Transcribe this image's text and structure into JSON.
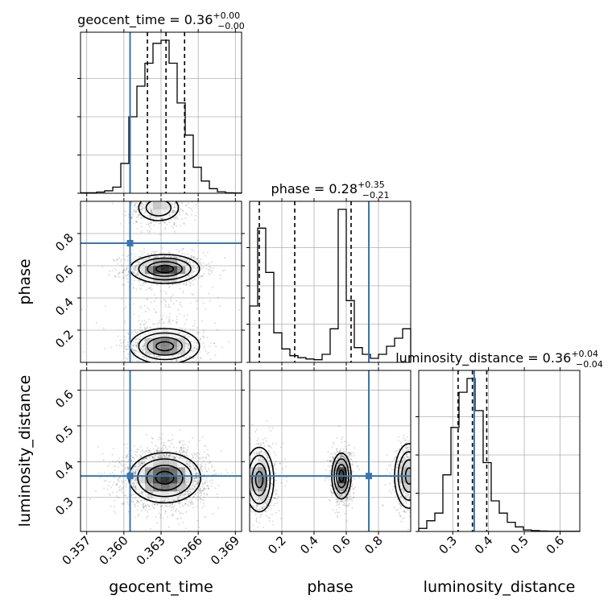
{
  "chart_data": {
    "type": "corner",
    "colors": {
      "truth": "#3a76b0",
      "line": "#000000",
      "grid": "#b0b0b0",
      "points": "#444444"
    },
    "params": [
      {
        "name": "geocent_time",
        "title": "geocent_time = 0.36",
        "title_sup": "+0.00",
        "title_sub": "−0.00",
        "range": [
          0.3565,
          0.3695
        ],
        "ticks": [
          0.357,
          0.36,
          0.363,
          0.366,
          0.369
        ],
        "tick_labels": [
          "0.357",
          "0.360",
          "0.363",
          "0.366",
          "0.369"
        ],
        "truth": 0.3605,
        "quantiles": [
          0.3619,
          0.3634,
          0.3649
        ],
        "hist_edges": [
          0.3565,
          0.35715,
          0.3578,
          0.35845,
          0.3591,
          0.35975,
          0.3604,
          0.36105,
          0.3617,
          0.36235,
          0.363,
          0.36365,
          0.3643,
          0.36495,
          0.3656,
          0.36625,
          0.3669,
          0.36755,
          0.3682,
          0.36885,
          0.3695
        ],
        "hist_counts": [
          0.3,
          0.3,
          0.8,
          1.6,
          4.0,
          19.5,
          50.0,
          70.0,
          85.0,
          98.0,
          100.0,
          85.0,
          59.0,
          38.0,
          17.0,
          8.0,
          3.0,
          1.0,
          0.3,
          0.2
        ]
      },
      {
        "name": "phase",
        "title": "phase = 0.28",
        "title_sup": "+0.35",
        "title_sub": "−0.21",
        "range": [
          0.0,
          1.0
        ],
        "ticks": [
          0.2,
          0.4,
          0.6,
          0.8
        ],
        "tick_labels": [
          "0.2",
          "0.4",
          "0.6",
          "0.8"
        ],
        "truth": 0.74,
        "quantiles": [
          0.06,
          0.28,
          0.63
        ],
        "hist_edges": [
          0.0,
          0.05,
          0.1,
          0.15,
          0.2,
          0.25,
          0.3,
          0.35,
          0.4,
          0.45,
          0.5,
          0.55,
          0.6,
          0.65,
          0.7,
          0.75,
          0.8,
          0.85,
          0.9,
          0.95,
          1.0
        ],
        "hist_counts": [
          42.0,
          100.0,
          67.0,
          22.0,
          10.0,
          5.0,
          3.5,
          2.5,
          2.0,
          6.0,
          25.0,
          114.0,
          46.0,
          11.0,
          6.0,
          3.0,
          6.0,
          12.0,
          18.0,
          25.0
        ]
      },
      {
        "name": "luminosity_distance",
        "title": "luminosity_distance = 0.36",
        "title_sup": "+0.04",
        "title_sub": "−0.04",
        "range": [
          0.205,
          0.655
        ],
        "ticks": [
          0.3,
          0.4,
          0.5,
          0.6
        ],
        "tick_labels": [
          "0.3",
          "0.4",
          "0.5",
          "0.6"
        ],
        "truth": 0.36,
        "quantiles": [
          0.315,
          0.355,
          0.395
        ],
        "hist_edges": [
          0.205,
          0.2275,
          0.25,
          0.2725,
          0.295,
          0.3175,
          0.34,
          0.3625,
          0.385,
          0.4075,
          0.43,
          0.4525,
          0.475,
          0.4975,
          0.52,
          0.5425,
          0.565,
          0.5875,
          0.61,
          0.6325,
          0.655
        ],
        "hist_counts": [
          2.0,
          7.0,
          12.0,
          37.0,
          68.0,
          91.0,
          100.0,
          79.0,
          45.0,
          20.0,
          12.0,
          6.0,
          3.0,
          1.0,
          0.6,
          0.3,
          0.2,
          0.1,
          0.1,
          0.1
        ]
      }
    ],
    "pairs": [
      {
        "x": "geocent_time",
        "y": "phase",
        "blobs": [
          {
            "mx": 0.3633,
            "my": 0.58,
            "sx": 0.0014,
            "sy": 0.045,
            "w": 1.0
          },
          {
            "mx": 0.3633,
            "my": 0.1,
            "sx": 0.0014,
            "sy": 0.055,
            "w": 0.75
          },
          {
            "mx": 0.3628,
            "my": 0.96,
            "sx": 0.001,
            "sy": 0.05,
            "w": 0.5
          },
          {
            "mx": 0.363,
            "my": 0.3,
            "sx": 0.0018,
            "sy": 0.12,
            "w": 0.15
          }
        ]
      },
      {
        "x": "geocent_time",
        "y": "luminosity_distance",
        "blobs": [
          {
            "mx": 0.3633,
            "my": 0.355,
            "sx": 0.00145,
            "sy": 0.035,
            "w": 1.0
          }
        ]
      },
      {
        "x": "phase",
        "y": "luminosity_distance",
        "blobs": [
          {
            "mx": 0.57,
            "my": 0.36,
            "sx": 0.03,
            "sy": 0.032,
            "w": 1.0
          },
          {
            "mx": 0.06,
            "my": 0.35,
            "sx": 0.045,
            "sy": 0.045,
            "w": 0.75
          },
          {
            "mx": 0.99,
            "my": 0.36,
            "sx": 0.045,
            "sy": 0.045,
            "w": 0.6
          }
        ]
      }
    ]
  }
}
